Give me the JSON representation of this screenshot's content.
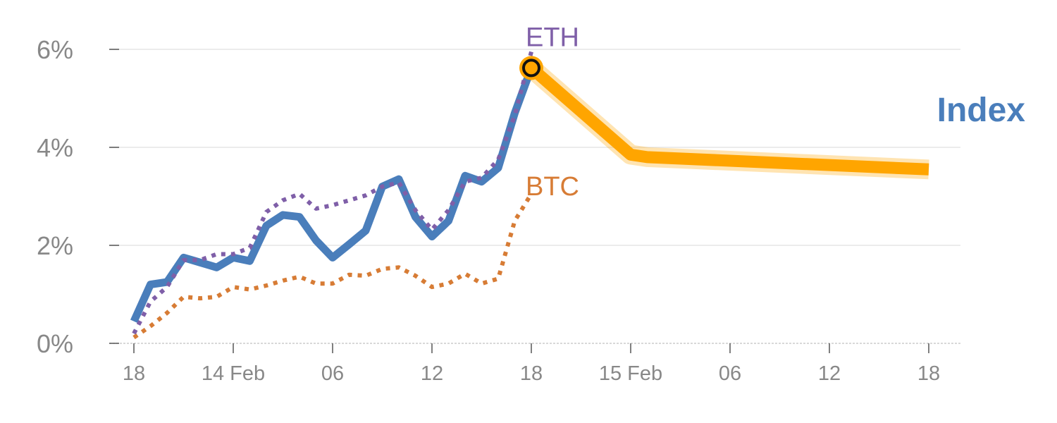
{
  "chart_data": {
    "type": "line",
    "title": "",
    "xlabel": "",
    "ylabel": "",
    "x_tick_labels": [
      "18",
      "14 Feb",
      "06",
      "12",
      "18",
      "15 Feb",
      "06",
      "12",
      "18"
    ],
    "y_tick_labels": [
      "0%",
      "2%",
      "4%",
      "6%"
    ],
    "ylim": [
      0,
      6
    ],
    "grid": true,
    "series": [
      {
        "name": "Index",
        "color": "#4a7ebb",
        "style": "solid",
        "points": [
          [
            0,
            0.45
          ],
          [
            0.5,
            1.2
          ],
          [
            1,
            1.25
          ],
          [
            1.5,
            1.75
          ],
          [
            2,
            1.65
          ],
          [
            2.5,
            1.55
          ],
          [
            3,
            1.75
          ],
          [
            3.5,
            1.68
          ],
          [
            4,
            2.4
          ],
          [
            4.5,
            2.62
          ],
          [
            5,
            2.58
          ],
          [
            5.5,
            2.1
          ],
          [
            6,
            1.75
          ],
          [
            6.5,
            2.02
          ],
          [
            7,
            2.3
          ],
          [
            7.5,
            3.2
          ],
          [
            8,
            3.35
          ],
          [
            8.5,
            2.58
          ],
          [
            9,
            2.18
          ],
          [
            9.5,
            2.5
          ],
          [
            10,
            3.42
          ],
          [
            10.5,
            3.3
          ],
          [
            11,
            3.58
          ],
          [
            11.5,
            4.7
          ],
          [
            12,
            5.62
          ]
        ]
      },
      {
        "name": "ETH",
        "color": "#7f5fa8",
        "style": "dotted",
        "points": [
          [
            0,
            0.2
          ],
          [
            0.5,
            0.85
          ],
          [
            1,
            1.15
          ],
          [
            1.5,
            1.7
          ],
          [
            2,
            1.7
          ],
          [
            2.5,
            1.82
          ],
          [
            3,
            1.82
          ],
          [
            3.5,
            1.95
          ],
          [
            4,
            2.68
          ],
          [
            4.5,
            2.92
          ],
          [
            5,
            3.05
          ],
          [
            5.5,
            2.75
          ],
          [
            6,
            2.82
          ],
          [
            6.5,
            2.92
          ],
          [
            7,
            3.02
          ],
          [
            7.5,
            3.2
          ],
          [
            8,
            3.28
          ],
          [
            8.5,
            2.72
          ],
          [
            9,
            2.32
          ],
          [
            9.5,
            2.72
          ],
          [
            10,
            3.3
          ],
          [
            10.5,
            3.38
          ],
          [
            11,
            3.75
          ],
          [
            11.5,
            4.65
          ],
          [
            12,
            5.95
          ]
        ]
      },
      {
        "name": "BTC",
        "color": "#d77c35",
        "style": "dotted",
        "points": [
          [
            0,
            0.12
          ],
          [
            0.5,
            0.35
          ],
          [
            1,
            0.62
          ],
          [
            1.5,
            0.95
          ],
          [
            2,
            0.92
          ],
          [
            2.5,
            0.95
          ],
          [
            3,
            1.15
          ],
          [
            3.5,
            1.1
          ],
          [
            4,
            1.18
          ],
          [
            4.5,
            1.28
          ],
          [
            5,
            1.36
          ],
          [
            5.5,
            1.22
          ],
          [
            6,
            1.22
          ],
          [
            6.5,
            1.4
          ],
          [
            7,
            1.38
          ],
          [
            7.5,
            1.52
          ],
          [
            8,
            1.55
          ],
          [
            8.5,
            1.38
          ],
          [
            9,
            1.15
          ],
          [
            9.5,
            1.22
          ],
          [
            10,
            1.42
          ],
          [
            10.5,
            1.22
          ],
          [
            11,
            1.32
          ],
          [
            11.5,
            2.5
          ],
          [
            12,
            3.05
          ]
        ]
      },
      {
        "name": "Index",
        "color": "#ffa500",
        "style": "projection",
        "points": [
          [
            12,
            5.62
          ],
          [
            15,
            3.85
          ],
          [
            15.5,
            3.8
          ],
          [
            24,
            3.55
          ]
        ]
      }
    ],
    "labels": {
      "eth": "ETH",
      "btc": "BTC",
      "index": "Index"
    },
    "highlight_point": {
      "x": 12,
      "y": 5.62
    }
  }
}
